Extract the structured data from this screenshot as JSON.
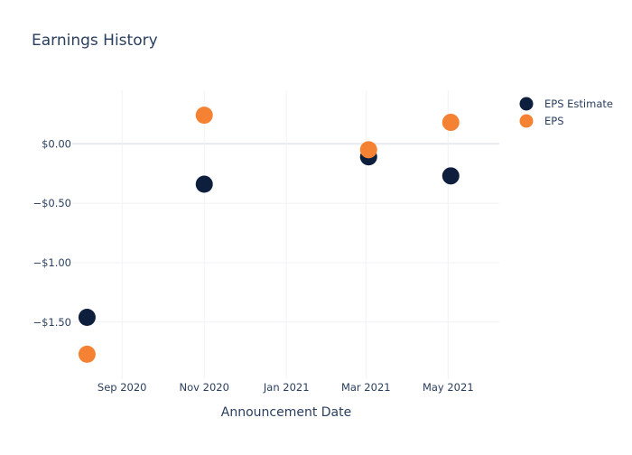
{
  "chart_data": {
    "type": "scatter",
    "title": "Earnings History",
    "xlabel": "Announcement Date",
    "ylabel": "",
    "x_tick_labels": [
      {
        "date": "2020-09-01",
        "label": "Sep 2020"
      },
      {
        "date": "2020-11-01",
        "label": "Nov 2020"
      },
      {
        "date": "2021-01-01",
        "label": "Jan 2021"
      },
      {
        "date": "2021-03-01",
        "label": "Mar 2021"
      },
      {
        "date": "2021-05-01",
        "label": "May 2021"
      }
    ],
    "y_tick_labels": [
      {
        "value": 0,
        "label": "$0.00"
      },
      {
        "value": -0.5,
        "label": "−$0.50"
      },
      {
        "value": -1.0,
        "label": "−$1.00"
      },
      {
        "value": -1.5,
        "label": "−$1.50"
      }
    ],
    "xlim": [
      "2020-07-26",
      "2021-06-08"
    ],
    "ylim": [
      -1.98,
      0.45
    ],
    "grid": true,
    "legend_position": "top-right",
    "series": [
      {
        "name": "EPS Estimate",
        "color": "#0d1f3c",
        "points": [
          {
            "x": "2020-08-06",
            "y": -1.46
          },
          {
            "x": "2020-11-01",
            "y": -0.34
          },
          {
            "x": "2021-03-03",
            "y": -0.11
          },
          {
            "x": "2021-05-03",
            "y": -0.27
          }
        ]
      },
      {
        "name": "EPS",
        "color": "#f58233",
        "points": [
          {
            "x": "2020-08-06",
            "y": -1.77
          },
          {
            "x": "2020-11-01",
            "y": 0.24
          },
          {
            "x": "2021-03-03",
            "y": -0.05
          },
          {
            "x": "2021-05-03",
            "y": 0.18
          }
        ]
      }
    ]
  }
}
